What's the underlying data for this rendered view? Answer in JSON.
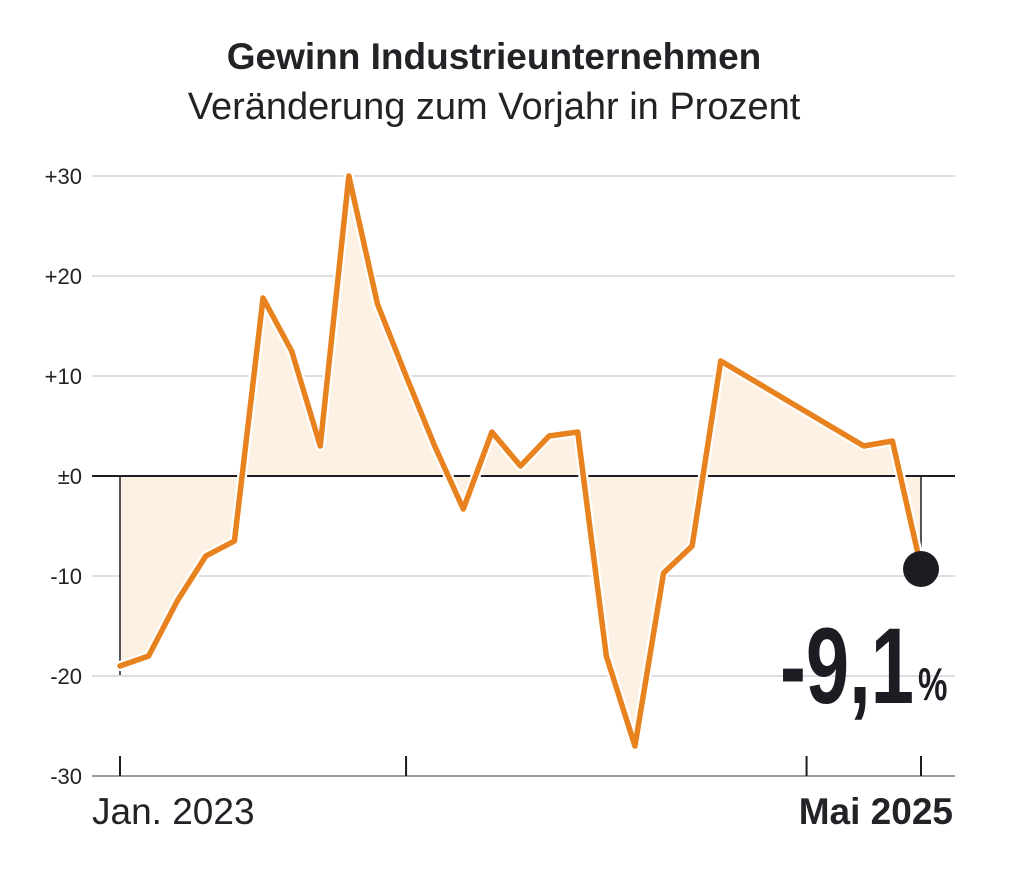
{
  "chart_data": {
    "type": "area",
    "title": "Gewinn Industrieunternehmen",
    "subtitle": "Veränderung zum Vorjahr in Prozent",
    "ylim": [
      -30,
      30
    ],
    "yticks": [
      30,
      20,
      10,
      0,
      -10,
      -20,
      -30
    ],
    "ytick_labels": [
      "+30",
      "+20",
      "+10",
      "±0",
      "-10",
      "-20",
      "-30"
    ],
    "x_start_label": "Jan. 2023",
    "x_end_label": "Mai 2025",
    "x_index_range": [
      0,
      28
    ],
    "grid": true,
    "series": [
      {
        "color": "#e8821e",
        "fill": "#fdf1e3",
        "points": [
          {
            "x": 0,
            "y": -19.0
          },
          {
            "x": 1,
            "y": -18.0
          },
          {
            "x": 2,
            "y": -12.5
          },
          {
            "x": 3,
            "y": -8.0
          },
          {
            "x": 4,
            "y": -6.5
          },
          {
            "x": 5,
            "y": 17.8
          },
          {
            "x": 6,
            "y": 12.5
          },
          {
            "x": 7,
            "y": 3.0
          },
          {
            "x": 8,
            "y": 30.0
          },
          {
            "x": 9,
            "y": 17.2
          },
          {
            "x": 10,
            "y": 10.0
          },
          {
            "x": 11,
            "y": 3.0
          },
          {
            "x": 12,
            "y": -3.3
          },
          {
            "x": 13,
            "y": 4.4
          },
          {
            "x": 14,
            "y": 1.0
          },
          {
            "x": 15,
            "y": 4.0
          },
          {
            "x": 16,
            "y": 4.4
          },
          {
            "x": 17,
            "y": -18.0
          },
          {
            "x": 18,
            "y": -27.0
          },
          {
            "x": 19,
            "y": -9.7
          },
          {
            "x": 20,
            "y": -7.0
          },
          {
            "x": 21,
            "y": 11.5
          },
          {
            "x": 26,
            "y": 3.0
          },
          {
            "x": 27,
            "y": 3.5
          },
          {
            "x": 28,
            "y": -9.1
          }
        ]
      }
    ],
    "callout": {
      "value": "-9,1",
      "unit": "%"
    }
  }
}
